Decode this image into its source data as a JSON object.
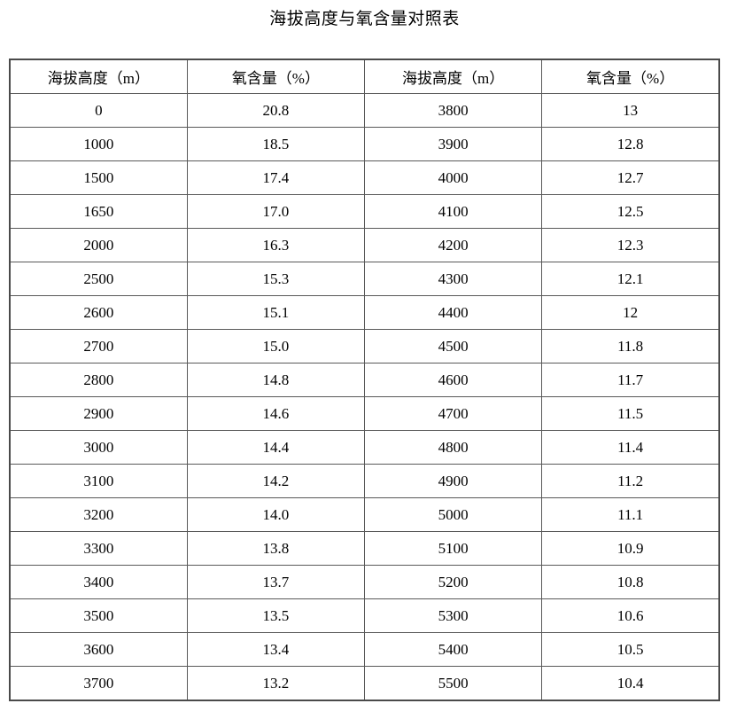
{
  "title": "海拔高度与氧含量对照表",
  "table": {
    "headers": [
      "海拔高度（m）",
      "氧含量（%）",
      "海拔高度（m）",
      "氧含量（%）"
    ],
    "rows": [
      [
        "0",
        "20.8",
        "3800",
        "13"
      ],
      [
        "1000",
        "18.5",
        "3900",
        "12.8"
      ],
      [
        "1500",
        "17.4",
        "4000",
        "12.7"
      ],
      [
        "1650",
        "17.0",
        "4100",
        "12.5"
      ],
      [
        "2000",
        "16.3",
        "4200",
        "12.3"
      ],
      [
        "2500",
        "15.3",
        "4300",
        "12.1"
      ],
      [
        "2600",
        "15.1",
        "4400",
        "12"
      ],
      [
        "2700",
        "15.0",
        "4500",
        "11.8"
      ],
      [
        "2800",
        "14.8",
        "4600",
        "11.7"
      ],
      [
        "2900",
        "14.6",
        "4700",
        "11.5"
      ],
      [
        "3000",
        "14.4",
        "4800",
        "11.4"
      ],
      [
        "3100",
        "14.2",
        "4900",
        "11.2"
      ],
      [
        "3200",
        "14.0",
        "5000",
        "11.1"
      ],
      [
        "3300",
        "13.8",
        "5100",
        "10.9"
      ],
      [
        "3400",
        "13.7",
        "5200",
        "10.8"
      ],
      [
        "3500",
        "13.5",
        "5300",
        "10.6"
      ],
      [
        "3600",
        "13.4",
        "5400",
        "10.5"
      ],
      [
        "3700",
        "13.2",
        "5500",
        "10.4"
      ]
    ]
  },
  "colors": {
    "background": "#ffffff",
    "text": "#000000",
    "grid_line": "#595959",
    "outer_border": "#4a4a4a"
  },
  "chart_data": {
    "type": "table",
    "title": "海拔高度与氧含量对照表",
    "columns": [
      "海拔高度（m）",
      "氧含量（%）"
    ],
    "altitude_m": [
      0,
      1000,
      1500,
      1650,
      2000,
      2500,
      2600,
      2700,
      2800,
      2900,
      3000,
      3100,
      3200,
      3300,
      3400,
      3500,
      3600,
      3700,
      3800,
      3900,
      4000,
      4100,
      4200,
      4300,
      4400,
      4500,
      4600,
      4700,
      4800,
      4900,
      5000,
      5100,
      5200,
      5300,
      5400,
      5500
    ],
    "oxygen_percent": [
      20.8,
      18.5,
      17.4,
      17.0,
      16.3,
      15.3,
      15.1,
      15.0,
      14.8,
      14.6,
      14.4,
      14.2,
      14.0,
      13.8,
      13.7,
      13.5,
      13.4,
      13.2,
      13,
      12.8,
      12.7,
      12.5,
      12.3,
      12.1,
      12,
      11.8,
      11.7,
      11.5,
      11.4,
      11.2,
      11.1,
      10.9,
      10.8,
      10.6,
      10.5,
      10.4
    ]
  }
}
